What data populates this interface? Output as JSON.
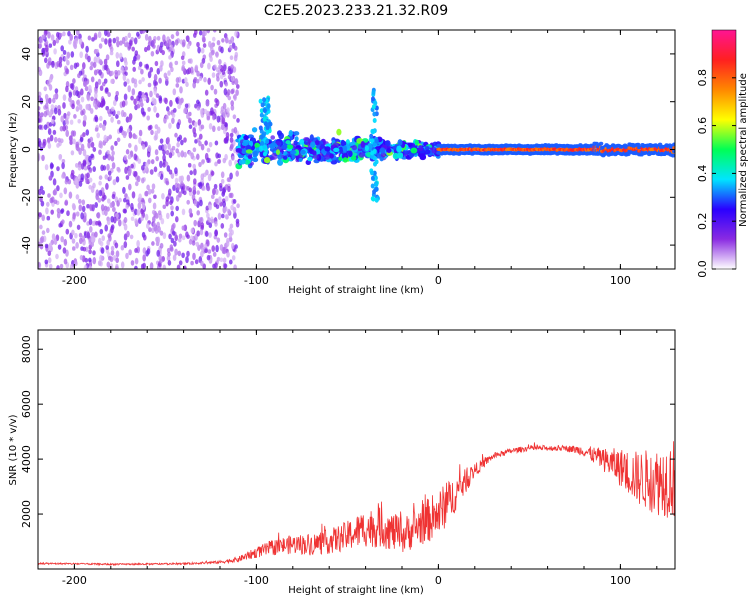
{
  "figure_title": "C2E5.2023.233.21.32.R09",
  "colors": {
    "line": "#ef3333",
    "axis": "#000000"
  },
  "chart_data": [
    {
      "type": "heatmap",
      "title": "C2E5.2023.233.21.32.R09",
      "xlabel": "Height of straight line (km)",
      "ylabel": "Frequency (Hz)",
      "xlim": [
        -220,
        130
      ],
      "ylim": [
        -50,
        50
      ],
      "xticks": [
        -200,
        -100,
        0,
        100
      ],
      "xtick_labels": [
        "-200",
        "-100",
        "0",
        "100"
      ],
      "yticks": [
        -40,
        -20,
        0,
        20,
        40
      ],
      "ytick_labels": [
        "-40",
        "-20",
        "0",
        "20",
        "40"
      ],
      "colorbar": {
        "label": "Normalized spectral amplitude",
        "range": [
          0,
          1
        ],
        "ticks": [
          0.0,
          0.2,
          0.4,
          0.6,
          0.8
        ],
        "tick_labels": [
          "0.0",
          "0.2",
          "0.4",
          "0.6",
          "0.8"
        ],
        "colormap": [
          "#ffffff",
          "#8a2be2",
          "#2a00ff",
          "#00e5ff",
          "#00ff55",
          "#ffff00",
          "#ff8800",
          "#ff2020",
          "#ff1493"
        ]
      },
      "regions": [
        {
          "name": "diffuse noise",
          "x_range": [
            -220,
            -110
          ],
          "freq_range": [
            -50,
            50
          ],
          "amplitude": 0.1
        },
        {
          "name": "scattered signal",
          "x_range": [
            -110,
            0
          ],
          "freq_range": [
            -10,
            10
          ],
          "amplitude": 0.3
        },
        {
          "name": "spike",
          "x": -95,
          "freq_range": [
            0,
            22
          ],
          "amplitude": 0.3
        },
        {
          "name": "spike",
          "x": -35,
          "freq_range": [
            -22,
            25
          ],
          "amplitude": 0.3
        },
        {
          "name": "narrow line",
          "x_range": [
            0,
            130
          ],
          "freq": 0,
          "amplitude": 0.9
        }
      ]
    },
    {
      "type": "line",
      "xlabel": "Height of straight line (km)",
      "ylabel": "SNR (10 * v/v)",
      "xlim": [
        -220,
        130
      ],
      "ylim": [
        0,
        8700
      ],
      "xticks": [
        -200,
        -100,
        0,
        100
      ],
      "xtick_labels": [
        "-200",
        "-100",
        "0",
        "100"
      ],
      "yticks": [
        2000,
        4000,
        6000,
        8000
      ],
      "ytick_labels": [
        "2000",
        "4000",
        "6000",
        "8000"
      ],
      "series": [
        {
          "name": "SNR",
          "x": [
            -220,
            -200,
            -180,
            -160,
            -140,
            -120,
            -110,
            -100,
            -90,
            -80,
            -70,
            -60,
            -50,
            -40,
            -30,
            -20,
            -10,
            0,
            10,
            20,
            30,
            40,
            50,
            60,
            70,
            80,
            90,
            100,
            110,
            120,
            130
          ],
          "mean": [
            200,
            190,
            170,
            180,
            190,
            250,
            350,
            600,
            800,
            900,
            900,
            1000,
            1200,
            1500,
            1500,
            1200,
            1600,
            2000,
            2800,
            3600,
            4100,
            4300,
            4400,
            4400,
            4400,
            4300,
            4000,
            3700,
            3300,
            3200,
            3300
          ],
          "spread": [
            60,
            60,
            60,
            60,
            60,
            100,
            200,
            400,
            600,
            700,
            800,
            900,
            1100,
            1400,
            1500,
            1300,
            1500,
            1800,
            1300,
            500,
            200,
            200,
            200,
            200,
            200,
            400,
            800,
            1400,
            2000,
            2500,
            3000
          ]
        }
      ]
    }
  ]
}
